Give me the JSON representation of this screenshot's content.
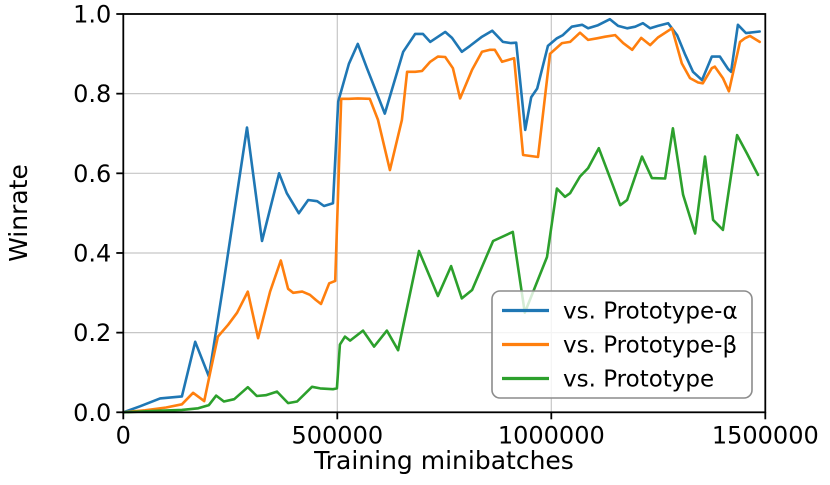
{
  "figure": {
    "background": "#ffffff",
    "grid_color": "#c6c6c6",
    "spine_color": "#000000"
  },
  "chart_data": {
    "type": "line",
    "title": "",
    "xlabel": "Training minibatches",
    "ylabel": "Winrate",
    "xlim": [
      0,
      1500000
    ],
    "ylim": [
      0.0,
      1.0
    ],
    "grid": true,
    "legend": {
      "position": "lower right",
      "entries": [
        "vs. Prototype-α",
        "vs. Prototype-β",
        "vs. Prototype"
      ]
    },
    "xticks": [
      {
        "v": 0,
        "label": "0"
      },
      {
        "v": 500000,
        "label": "500000"
      },
      {
        "v": 1000000,
        "label": "1000000"
      },
      {
        "v": 1500000,
        "label": "1500000"
      }
    ],
    "yticks": [
      {
        "v": 0.0,
        "label": "0.0"
      },
      {
        "v": 0.2,
        "label": "0.2"
      },
      {
        "v": 0.4,
        "label": "0.4"
      },
      {
        "v": 0.6,
        "label": "0.6"
      },
      {
        "v": 0.8,
        "label": "0.8"
      },
      {
        "v": 1.0,
        "label": "1.0"
      }
    ],
    "series": [
      {
        "name": "vs. Prototype-α",
        "color": "#1f77b4",
        "points": [
          [
            0,
            0
          ],
          [
            39000,
            0.015
          ],
          [
            86000,
            0.035
          ],
          [
            137000,
            0.04
          ],
          [
            168000,
            0.177
          ],
          [
            200000,
            0.09
          ],
          [
            233000,
            0.315
          ],
          [
            289000,
            0.715
          ],
          [
            324000,
            0.43
          ],
          [
            364000,
            0.6
          ],
          [
            382000,
            0.55
          ],
          [
            410000,
            0.5
          ],
          [
            432000,
            0.533
          ],
          [
            453000,
            0.53
          ],
          [
            469000,
            0.518
          ],
          [
            490000,
            0.525
          ],
          [
            502000,
            0.78
          ],
          [
            527000,
            0.875
          ],
          [
            548000,
            0.925
          ],
          [
            569000,
            0.865
          ],
          [
            611000,
            0.75
          ],
          [
            654000,
            0.905
          ],
          [
            682000,
            0.95
          ],
          [
            700000,
            0.95
          ],
          [
            717000,
            0.93
          ],
          [
            752000,
            0.955
          ],
          [
            768000,
            0.94
          ],
          [
            791000,
            0.905
          ],
          [
            810000,
            0.92
          ],
          [
            838000,
            0.943
          ],
          [
            862000,
            0.958
          ],
          [
            887000,
            0.93
          ],
          [
            906000,
            0.927
          ],
          [
            918000,
            0.928
          ],
          [
            939000,
            0.709
          ],
          [
            953000,
            0.791
          ],
          [
            967000,
            0.813
          ],
          [
            992000,
            0.92
          ],
          [
            1013000,
            0.939
          ],
          [
            1027000,
            0.947
          ],
          [
            1048000,
            0.968
          ],
          [
            1072000,
            0.973
          ],
          [
            1086000,
            0.964
          ],
          [
            1109000,
            0.972
          ],
          [
            1137000,
            0.987
          ],
          [
            1156000,
            0.97
          ],
          [
            1177000,
            0.964
          ],
          [
            1196000,
            0.968
          ],
          [
            1214000,
            0.977
          ],
          [
            1231000,
            0.964
          ],
          [
            1249000,
            0.97
          ],
          [
            1273000,
            0.977
          ],
          [
            1294000,
            0.947
          ],
          [
            1312000,
            0.9
          ],
          [
            1331000,
            0.855
          ],
          [
            1352000,
            0.834
          ],
          [
            1375000,
            0.893
          ],
          [
            1394000,
            0.893
          ],
          [
            1413000,
            0.862
          ],
          [
            1420000,
            0.855
          ],
          [
            1436000,
            0.973
          ],
          [
            1455000,
            0.952
          ],
          [
            1487000,
            0.956
          ]
        ]
      },
      {
        "name": "vs. Prototype-β",
        "color": "#ff7f0e",
        "points": [
          [
            0,
            0
          ],
          [
            51000,
            0.005
          ],
          [
            100000,
            0.012
          ],
          [
            137000,
            0.02
          ],
          [
            163000,
            0.049
          ],
          [
            189000,
            0.028
          ],
          [
            203000,
            0.1
          ],
          [
            221000,
            0.19
          ],
          [
            245000,
            0.22
          ],
          [
            266000,
            0.25
          ],
          [
            291000,
            0.303
          ],
          [
            315000,
            0.186
          ],
          [
            343000,
            0.303
          ],
          [
            368000,
            0.381
          ],
          [
            385000,
            0.31
          ],
          [
            397000,
            0.3
          ],
          [
            418000,
            0.303
          ],
          [
            436000,
            0.295
          ],
          [
            450000,
            0.282
          ],
          [
            462000,
            0.272
          ],
          [
            481000,
            0.324
          ],
          [
            495000,
            0.33
          ],
          [
            509000,
            0.787
          ],
          [
            527000,
            0.787
          ],
          [
            548000,
            0.788
          ],
          [
            576000,
            0.787
          ],
          [
            595000,
            0.734
          ],
          [
            623000,
            0.608
          ],
          [
            651000,
            0.734
          ],
          [
            663000,
            0.855
          ],
          [
            682000,
            0.855
          ],
          [
            698000,
            0.857
          ],
          [
            717000,
            0.88
          ],
          [
            735000,
            0.893
          ],
          [
            752000,
            0.892
          ],
          [
            770000,
            0.864
          ],
          [
            787000,
            0.788
          ],
          [
            815000,
            0.86
          ],
          [
            838000,
            0.905
          ],
          [
            857000,
            0.91
          ],
          [
            868000,
            0.91
          ],
          [
            885000,
            0.88
          ],
          [
            901000,
            0.885
          ],
          [
            913000,
            0.889
          ],
          [
            934000,
            0.646
          ],
          [
            969000,
            0.641
          ],
          [
            997000,
            0.9
          ],
          [
            1025000,
            0.927
          ],
          [
            1044000,
            0.93
          ],
          [
            1067000,
            0.953
          ],
          [
            1086000,
            0.935
          ],
          [
            1107000,
            0.939
          ],
          [
            1126000,
            0.943
          ],
          [
            1149000,
            0.947
          ],
          [
            1168000,
            0.927
          ],
          [
            1189000,
            0.91
          ],
          [
            1210000,
            0.94
          ],
          [
            1231000,
            0.922
          ],
          [
            1249000,
            0.941
          ],
          [
            1282000,
            0.964
          ],
          [
            1305000,
            0.876
          ],
          [
            1324000,
            0.839
          ],
          [
            1343000,
            0.828
          ],
          [
            1354000,
            0.826
          ],
          [
            1375000,
            0.864
          ],
          [
            1382000,
            0.868
          ],
          [
            1401000,
            0.839
          ],
          [
            1415000,
            0.806
          ],
          [
            1441000,
            0.93
          ],
          [
            1452000,
            0.939
          ],
          [
            1464000,
            0.945
          ],
          [
            1487000,
            0.93
          ]
        ]
      },
      {
        "name": "vs. Prototype",
        "color": "#2ca02c",
        "points": [
          [
            0,
            0
          ],
          [
            86000,
            0.004
          ],
          [
            137000,
            0.006
          ],
          [
            175000,
            0.01
          ],
          [
            200000,
            0.018
          ],
          [
            217000,
            0.042
          ],
          [
            235000,
            0.027
          ],
          [
            259000,
            0.033
          ],
          [
            291000,
            0.063
          ],
          [
            312000,
            0.041
          ],
          [
            333000,
            0.043
          ],
          [
            359000,
            0.052
          ],
          [
            385000,
            0.023
          ],
          [
            406000,
            0.027
          ],
          [
            441000,
            0.064
          ],
          [
            460000,
            0.06
          ],
          [
            490000,
            0.058
          ],
          [
            499000,
            0.06
          ],
          [
            506000,
            0.17
          ],
          [
            518000,
            0.19
          ],
          [
            530000,
            0.18
          ],
          [
            560000,
            0.205
          ],
          [
            586000,
            0.165
          ],
          [
            616000,
            0.205
          ],
          [
            642000,
            0.156
          ],
          [
            691000,
            0.405
          ],
          [
            735000,
            0.292
          ],
          [
            766000,
            0.367
          ],
          [
            791000,
            0.286
          ],
          [
            815000,
            0.307
          ],
          [
            864000,
            0.43
          ],
          [
            910000,
            0.453
          ],
          [
            938000,
            0.25
          ],
          [
            990000,
            0.39
          ],
          [
            1013000,
            0.562
          ],
          [
            1032000,
            0.541
          ],
          [
            1044000,
            0.55
          ],
          [
            1067000,
            0.592
          ],
          [
            1086000,
            0.613
          ],
          [
            1111000,
            0.663
          ],
          [
            1142000,
            0.575
          ],
          [
            1161000,
            0.52
          ],
          [
            1177000,
            0.533
          ],
          [
            1212000,
            0.642
          ],
          [
            1235000,
            0.588
          ],
          [
            1266000,
            0.587
          ],
          [
            1284000,
            0.713
          ],
          [
            1308000,
            0.546
          ],
          [
            1336000,
            0.449
          ],
          [
            1359000,
            0.642
          ],
          [
            1378000,
            0.483
          ],
          [
            1401000,
            0.458
          ],
          [
            1434000,
            0.696
          ],
          [
            1457000,
            0.65
          ],
          [
            1483000,
            0.596
          ]
        ]
      }
    ]
  }
}
